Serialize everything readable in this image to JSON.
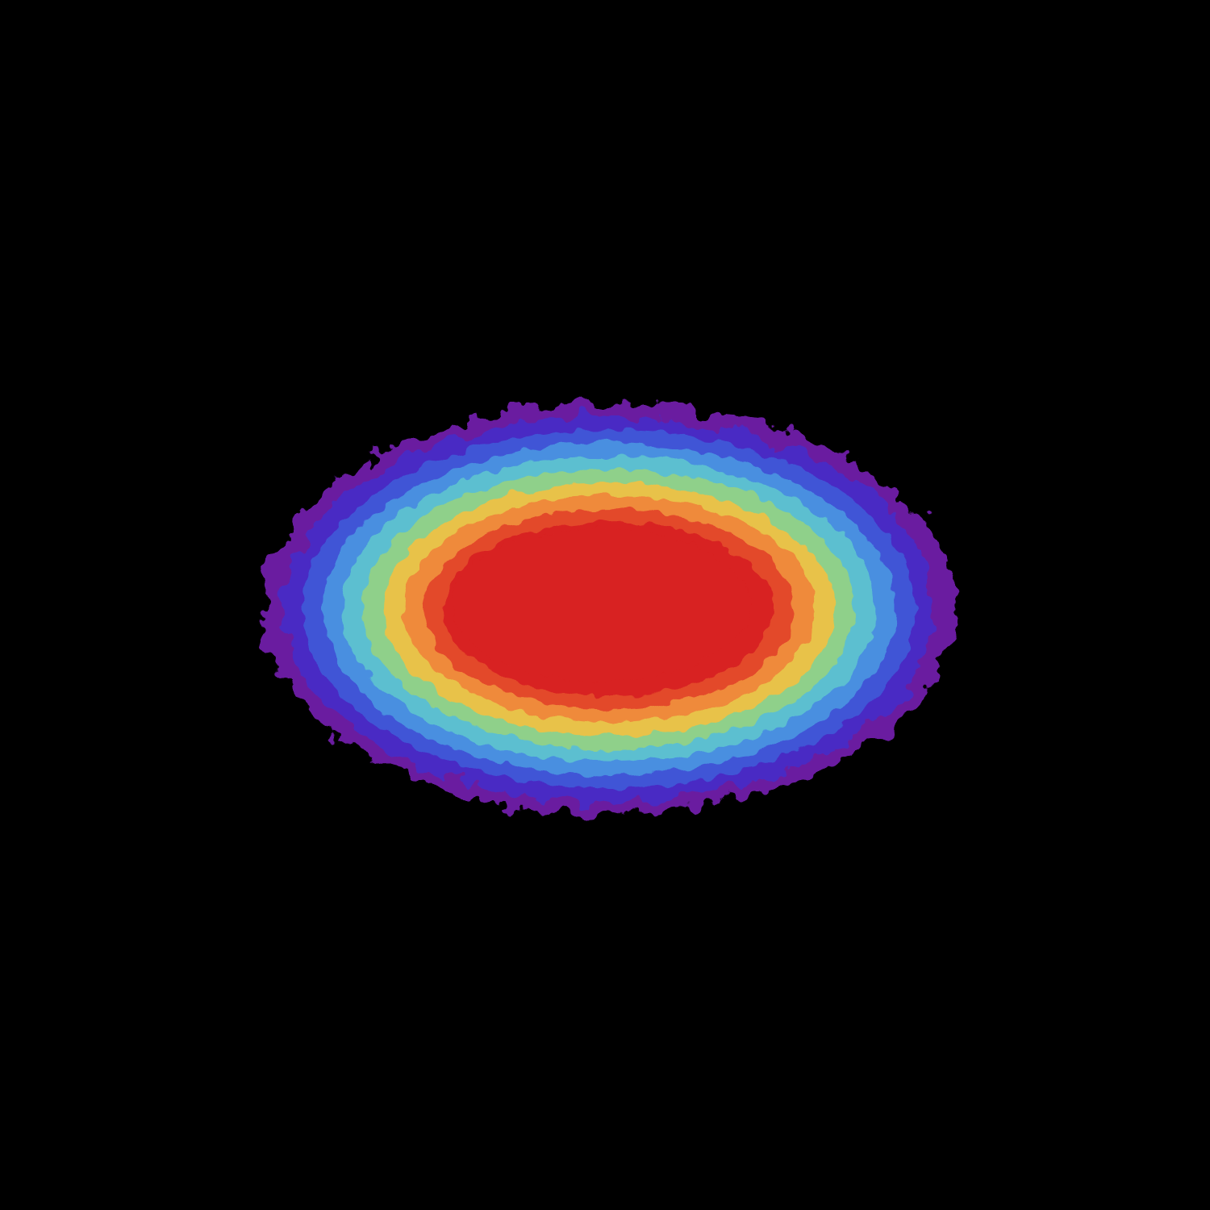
{
  "background_color": "#000000",
  "blob": {
    "description_icon": "heat-blob",
    "colormap": [
      "#6a1fa0",
      "#4a2cc4",
      "#3f55d6",
      "#4a8fe0",
      "#5bbfd0",
      "#8fd08a",
      "#e8c24a",
      "#ef8a3a",
      "#e34a2c",
      "#d82222"
    ],
    "core_color": "#d82222"
  }
}
